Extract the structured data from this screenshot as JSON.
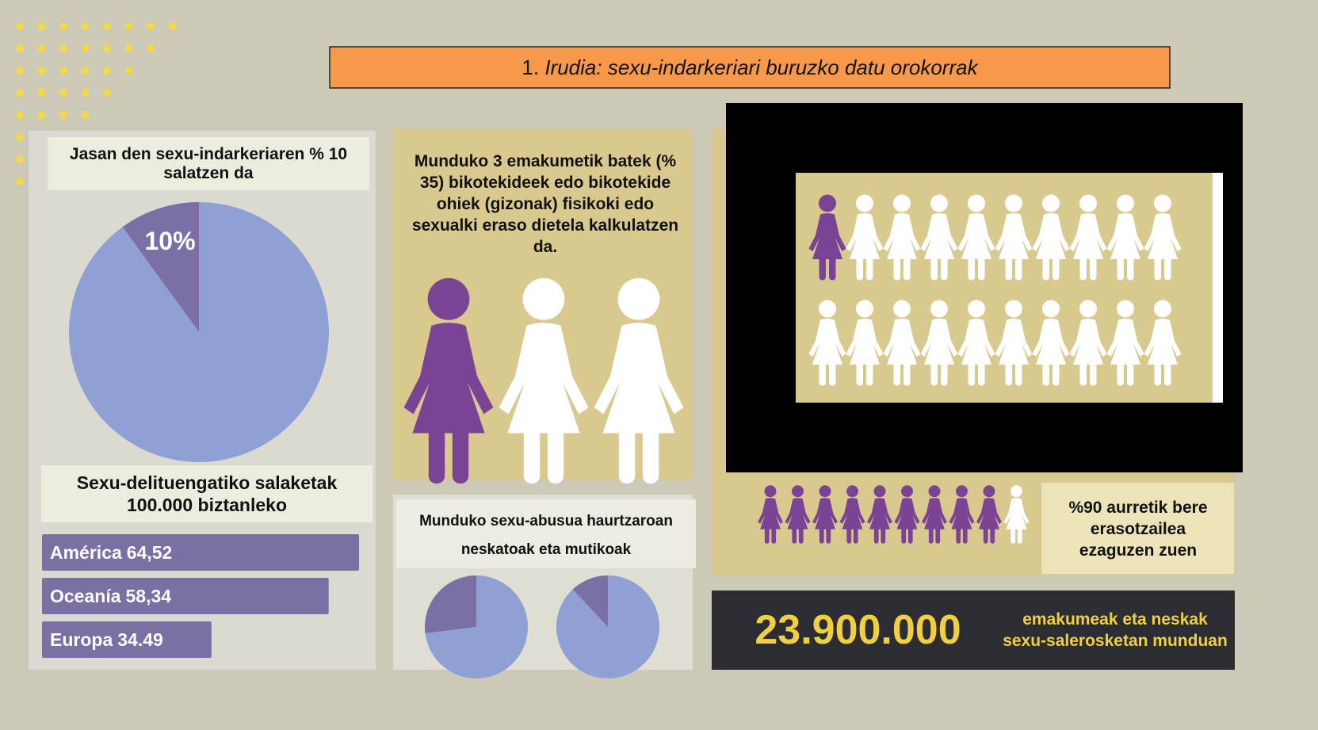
{
  "title": {
    "number": "1.",
    "text": "Irudia: sexu-indarkeriari buruzko datu orokorrak"
  },
  "chart_data": [
    {
      "type": "pie",
      "title": "Jasan den sexu-indarkeriaren % 10 salatzen da",
      "values": [
        10,
        90
      ],
      "value_labels": [
        "10%",
        null
      ],
      "colors": [
        "#7b6fa6",
        "#8ea0d4"
      ]
    },
    {
      "type": "bar",
      "title": "Sexu-delituengatiko salaketak 100.000 biztanleko",
      "categories": [
        "América",
        "Oceanía",
        "Europa"
      ],
      "values": [
        64.52,
        58.34,
        34.49
      ],
      "value_labels": [
        "64,52",
        "58,34",
        "34.49"
      ],
      "color": "#7b6fa3"
    },
    {
      "type": "pie",
      "title": "Munduko sexu-abusua haurtzaroan neskatoak eta mutikoak",
      "series": [
        {
          "values": [
            27,
            73
          ]
        },
        {
          "values": [
            12,
            88
          ]
        }
      ],
      "colors": [
        "#7b6fa6",
        "#8ea0d4"
      ]
    }
  ],
  "cards": {
    "one_in_three": "Munduko 3 emakumetik batek (% 35) bikotekideek edo bikotekide ohiek (gizonak) fisikoki edo sexualki eraso dietela kalkulatzen da.",
    "known_attacker": "%90 aurretik bere erasotzailea ezaguzen zuen",
    "trafficking": {
      "number": "23.900.000",
      "text": "emakumeak eta neskak sexu-salerosketan munduan"
    }
  }
}
